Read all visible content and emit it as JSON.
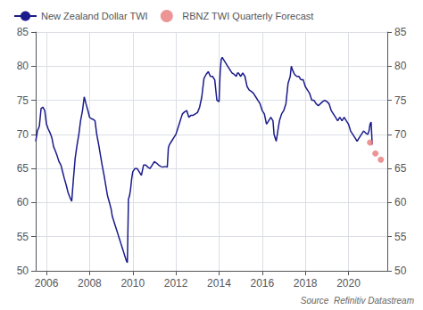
{
  "chart_data": {
    "type": "line",
    "annotations": [
      "Source  Refinitiv Datastream"
    ],
    "xlim": [
      2005.5,
      2021.8
    ],
    "xticks": [
      2006,
      2008,
      2010,
      2012,
      2014,
      2016,
      2018,
      2020
    ],
    "ylim": [
      50,
      85
    ],
    "yticks": [
      50,
      55,
      60,
      65,
      70,
      75,
      80,
      85
    ],
    "y2lim": [
      50,
      85
    ],
    "y2ticks": [
      50,
      55,
      60,
      65,
      70,
      75,
      80,
      85
    ],
    "grid": true,
    "legend": "upper left",
    "series": [
      {
        "name": "New Zealand Dollar TWI",
        "type": "line",
        "color": "#1a1a8c",
        "line_style": "solid",
        "x": [
          2005.5,
          2005.58,
          2005.67,
          2005.75,
          2005.83,
          2005.92,
          2006.0,
          2006.08,
          2006.17,
          2006.25,
          2006.33,
          2006.42,
          2006.5,
          2006.58,
          2006.67,
          2006.75,
          2006.83,
          2006.92,
          2007.0,
          2007.08,
          2007.17,
          2007.25,
          2007.33,
          2007.42,
          2007.5,
          2007.58,
          2007.67,
          2007.75,
          2007.83,
          2007.92,
          2008.0,
          2008.08,
          2008.17,
          2008.25,
          2008.33,
          2008.42,
          2008.5,
          2008.58,
          2008.67,
          2008.75,
          2008.83,
          2008.92,
          2009.0,
          2009.05,
          2009.1,
          2009.15,
          2009.2,
          2009.25,
          2009.3,
          2009.35,
          2009.4,
          2009.45,
          2009.5,
          2009.55,
          2009.6,
          2009.65,
          2009.7,
          2009.75,
          2009.8,
          2009.85,
          2009.9,
          2009.95,
          2010.0,
          2010.1,
          2010.2,
          2010.3,
          2010.4,
          2010.5,
          2010.6,
          2010.7,
          2010.8,
          2010.9,
          2011.0,
          2011.1,
          2011.2,
          2011.3,
          2011.4,
          2011.5,
          2011.6,
          2011.65,
          2011.7,
          2011.8,
          2011.9,
          2012.0,
          2012.1,
          2012.2,
          2012.3,
          2012.4,
          2012.5,
          2012.6,
          2012.7,
          2012.8,
          2012.9,
          2013.0,
          2013.1,
          2013.2,
          2013.3,
          2013.4,
          2013.5,
          2013.6,
          2013.7,
          2013.8,
          2013.9,
          2014.0,
          2014.05,
          2014.1,
          2014.15,
          2014.2,
          2014.3,
          2014.4,
          2014.5,
          2014.6,
          2014.7,
          2014.8,
          2014.85,
          2014.9,
          2015.0,
          2015.1,
          2015.2,
          2015.3,
          2015.4,
          2015.5,
          2015.6,
          2015.7,
          2015.8,
          2015.9,
          2016.0,
          2016.1,
          2016.2,
          2016.3,
          2016.4,
          2016.5,
          2016.55,
          2016.6,
          2016.65,
          2016.7,
          2016.75,
          2016.8,
          2016.9,
          2017.0,
          2017.1,
          2017.2,
          2017.3,
          2017.35,
          2017.4,
          2017.5,
          2017.6,
          2017.7,
          2017.8,
          2017.9,
          2018.0,
          2018.1,
          2018.2,
          2018.3,
          2018.4,
          2018.5,
          2018.6,
          2018.7,
          2018.8,
          2018.9,
          2019.0,
          2019.1,
          2019.2,
          2019.3,
          2019.4,
          2019.5,
          2019.6,
          2019.7,
          2019.8,
          2019.9,
          2020.0,
          2020.1,
          2020.2,
          2020.3,
          2020.4,
          2020.5,
          2020.6,
          2020.7,
          2020.8,
          2020.9,
          2020.95,
          2021.0,
          2021.05,
          2021.1
        ],
        "values": [
          69.0,
          70.5,
          71.2,
          73.8,
          74.0,
          73.5,
          71.5,
          70.8,
          70.2,
          69.5,
          68.2,
          67.5,
          66.8,
          66.0,
          65.5,
          64.5,
          63.5,
          62.5,
          61.5,
          60.8,
          60.2,
          63.5,
          66.5,
          68.5,
          70.0,
          72.0,
          73.5,
          75.5,
          74.5,
          73.5,
          72.5,
          72.3,
          72.2,
          72.0,
          70.0,
          68.5,
          67.0,
          65.5,
          64.0,
          62.5,
          61.0,
          60.0,
          59.0,
          58.0,
          57.5,
          57.0,
          56.5,
          56.0,
          55.5,
          55.0,
          54.5,
          54.0,
          53.5,
          53.0,
          52.5,
          52.0,
          51.5,
          51.2,
          60.5,
          61.0,
          62.0,
          63.5,
          64.5,
          65.0,
          65.0,
          64.5,
          64.0,
          65.5,
          65.5,
          65.2,
          65.0,
          65.5,
          66.0,
          65.8,
          65.5,
          65.3,
          65.2,
          65.3,
          65.2,
          68.0,
          68.5,
          69.0,
          69.5,
          70.0,
          71.0,
          72.0,
          73.0,
          73.3,
          73.5,
          72.5,
          72.8,
          72.8,
          73.0,
          73.2,
          74.0,
          75.5,
          78.2,
          78.8,
          79.2,
          78.5,
          78.5,
          78.0,
          75.0,
          74.8,
          79.0,
          81.0,
          81.3,
          81.0,
          80.5,
          80.0,
          79.5,
          79.0,
          78.8,
          78.5,
          79.0,
          79.0,
          78.5,
          79.0,
          78.5,
          77.0,
          76.5,
          76.3,
          76.0,
          75.5,
          75.0,
          74.5,
          73.5,
          73.0,
          71.5,
          72.0,
          72.5,
          72.0,
          70.0,
          69.5,
          69.0,
          70.0,
          71.0,
          72.0,
          73.0,
          73.5,
          74.5,
          77.5,
          78.5,
          80.0,
          79.5,
          78.8,
          78.5,
          78.5,
          78.0,
          78.0,
          77.0,
          76.5,
          76.0,
          75.0,
          75.0,
          74.5,
          74.2,
          74.5,
          74.8,
          75.0,
          74.8,
          74.5,
          73.5,
          73.0,
          72.5,
          72.0,
          72.5,
          72.0,
          72.5,
          72.0,
          71.5,
          70.5,
          70.0,
          69.5,
          69.0,
          69.5,
          70.0,
          70.5,
          70.2,
          70.0,
          70.5,
          71.5,
          71.8,
          68.5
        ]
      },
      {
        "name": "RBNZ TWI Quarterly Forecast",
        "type": "scatter",
        "color": "#e87a7a",
        "marker": "circle",
        "x": [
          2021.0,
          2021.25,
          2021.5
        ],
        "values": [
          68.8,
          67.2,
          66.3
        ]
      }
    ]
  }
}
